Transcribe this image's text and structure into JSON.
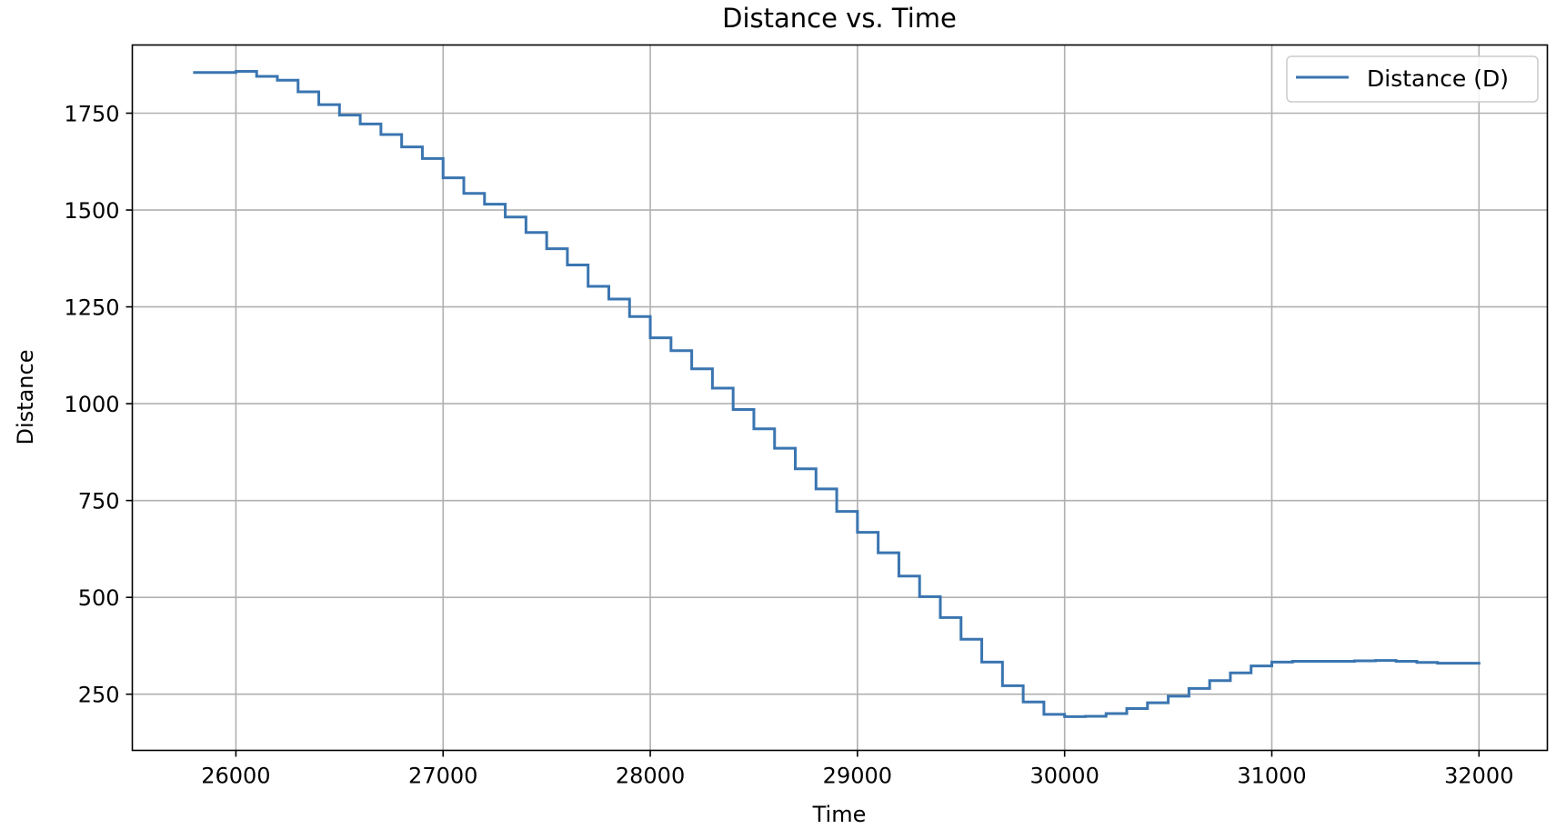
{
  "chart_data": {
    "type": "line",
    "title": "Distance vs. Time",
    "xlabel": "Time",
    "ylabel": "Distance",
    "xlim": [
      25500,
      32330
    ],
    "ylim": [
      105,
      1926
    ],
    "x_ticks": [
      26000,
      27000,
      28000,
      29000,
      30000,
      31000,
      32000
    ],
    "y_ticks": [
      250,
      500,
      750,
      1000,
      1250,
      1500,
      1750
    ],
    "grid": true,
    "legend_position": "top-right",
    "series": [
      {
        "name": "Distance (D)",
        "color": "#3a75b0",
        "step": true,
        "x": [
          25800,
          26000,
          26100,
          26200,
          26300,
          26400,
          26500,
          26600,
          26700,
          26800,
          26900,
          27000,
          27100,
          27200,
          27300,
          27400,
          27500,
          27600,
          27700,
          27800,
          27900,
          28000,
          28100,
          28200,
          28300,
          28400,
          28500,
          28600,
          28700,
          28800,
          28900,
          29000,
          29100,
          29200,
          29300,
          29400,
          29500,
          29600,
          29700,
          29800,
          29900,
          30000,
          30100,
          30200,
          30300,
          30400,
          30500,
          30600,
          30700,
          30800,
          30900,
          31000,
          31100,
          31200,
          31300,
          31400,
          31500,
          31600,
          31700,
          31800,
          31900,
          32000
        ],
        "y": [
          1855,
          1858,
          1845,
          1835,
          1805,
          1772,
          1745,
          1722,
          1695,
          1663,
          1633,
          1583,
          1543,
          1515,
          1482,
          1442,
          1400,
          1358,
          1303,
          1270,
          1225,
          1170,
          1137,
          1090,
          1040,
          985,
          935,
          885,
          832,
          780,
          722,
          668,
          615,
          555,
          502,
          448,
          392,
          333,
          272,
          230,
          198,
          192,
          193,
          200,
          213,
          228,
          245,
          265,
          285,
          305,
          323,
          333,
          335,
          335,
          335,
          336,
          337,
          335,
          332,
          330,
          330,
          330
        ]
      }
    ]
  }
}
